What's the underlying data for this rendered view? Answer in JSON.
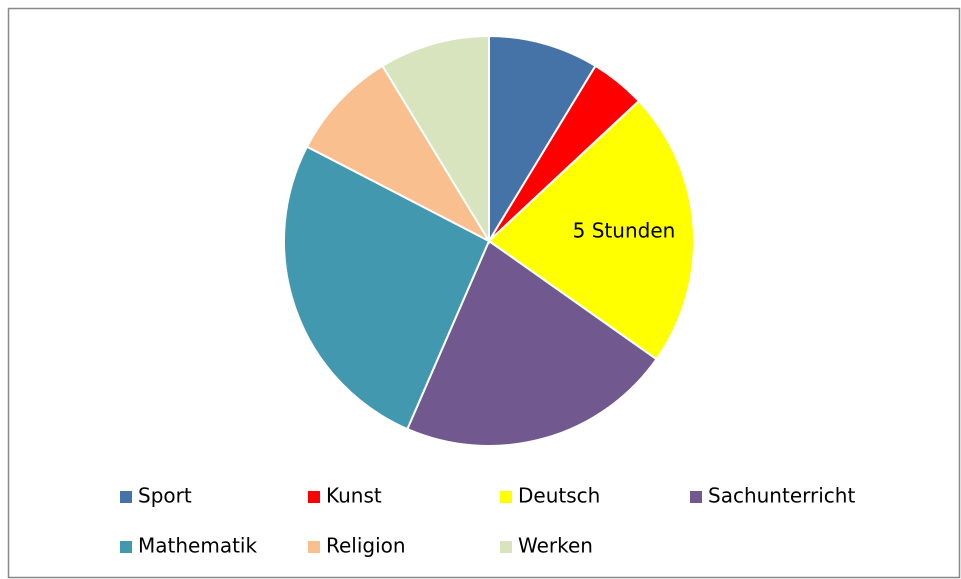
{
  "chart_data": {
    "type": "pie",
    "categories": [
      "Sport",
      "Kunst",
      "Deutsch",
      "Sachunterricht",
      "Mathematik",
      "Religion",
      "Werken"
    ],
    "values": [
      2,
      1,
      5,
      5,
      6,
      2,
      2
    ],
    "value_labels": [
      null,
      null,
      "5 Stunden",
      null,
      null,
      null,
      null
    ],
    "colors": [
      "#4572a7",
      "#ff0000",
      "#ffff00",
      "#71588f",
      "#4198af",
      "#f9bf8f",
      "#d7e4bd"
    ],
    "legend": "bottom"
  }
}
